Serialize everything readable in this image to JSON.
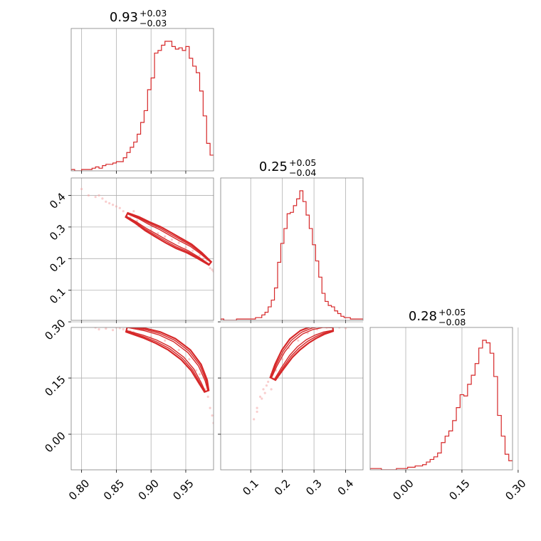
{
  "chart_data": {
    "type": "corner",
    "colors": {
      "series": "#d62728",
      "samples": "#f4a6a6",
      "grid": "#b0b0b0",
      "frame": "#808080"
    },
    "grid": true,
    "parameters": [
      {
        "id": "p0",
        "median_label": "0.93",
        "plus": "+0.03",
        "minus": "−0.03",
        "range": [
          0.785,
          0.99
        ],
        "ticks": [
          0.8,
          0.85,
          0.9,
          0.95
        ],
        "tick_labels": [
          "0.80",
          "0.85",
          "0.90",
          "0.95"
        ]
      },
      {
        "id": "p1",
        "median_label": "0.25",
        "plus": "+0.05",
        "minus": "−0.04",
        "range": [
          0.005,
          0.455
        ],
        "ticks": [
          0.1,
          0.2,
          0.3,
          0.4
        ],
        "tick_labels": [
          "0.1",
          "0.2",
          "0.3",
          "0.4"
        ]
      },
      {
        "id": "p2",
        "median_label": "0.28",
        "plus": "+0.05",
        "minus": "−0.08",
        "range": [
          -0.095,
          0.285
        ],
        "ticks": [
          0.0,
          0.15,
          0.3
        ],
        "tick_labels": [
          "0.00",
          "0.15",
          "0.30"
        ]
      }
    ],
    "histograms": [
      {
        "param": 0,
        "edges": [
          0.785,
          0.79,
          0.795,
          0.8,
          0.805,
          0.81,
          0.815,
          0.82,
          0.825,
          0.83,
          0.835,
          0.84,
          0.845,
          0.85,
          0.855,
          0.86,
          0.865,
          0.87,
          0.875,
          0.88,
          0.885,
          0.89,
          0.895,
          0.9,
          0.905,
          0.91,
          0.915,
          0.92,
          0.925,
          0.93,
          0.935,
          0.94,
          0.945,
          0.95,
          0.955,
          0.96,
          0.965,
          0.97,
          0.975,
          0.98,
          0.985,
          0.99
        ],
        "counts": [
          1,
          0,
          0,
          1,
          1,
          1,
          2,
          3,
          2,
          4,
          5,
          5,
          6,
          7,
          7,
          10,
          14,
          18,
          22,
          28,
          37,
          46,
          62,
          71,
          90,
          92,
          96,
          99,
          99,
          95,
          93,
          94,
          92,
          95,
          86,
          80,
          75,
          61,
          42,
          21,
          12
        ]
      },
      {
        "param": 1,
        "edges": [
          0.005,
          0.015,
          0.025,
          0.035,
          0.045,
          0.055,
          0.065,
          0.075,
          0.085,
          0.095,
          0.105,
          0.115,
          0.125,
          0.135,
          0.145,
          0.155,
          0.165,
          0.175,
          0.185,
          0.195,
          0.205,
          0.215,
          0.225,
          0.235,
          0.245,
          0.255,
          0.265,
          0.275,
          0.285,
          0.295,
          0.305,
          0.315,
          0.325,
          0.335,
          0.345,
          0.355,
          0.365,
          0.375,
          0.385,
          0.395,
          0.405,
          0.415,
          0.425,
          0.435,
          0.445,
          0.455
        ],
        "counts": [
          1,
          0,
          0,
          0,
          0,
          1,
          1,
          1,
          1,
          1,
          1,
          2,
          2,
          4,
          6,
          10,
          15,
          24,
          43,
          57,
          68,
          79,
          80,
          85,
          90,
          96,
          88,
          78,
          68,
          56,
          44,
          32,
          20,
          14,
          11,
          10,
          7,
          5,
          3,
          2,
          2,
          1,
          1,
          1,
          1
        ]
      },
      {
        "param": 2,
        "edges": [
          -0.095,
          -0.085,
          -0.075,
          -0.065,
          -0.055,
          -0.045,
          -0.035,
          -0.025,
          -0.015,
          -0.005,
          0.005,
          0.015,
          0.025,
          0.035,
          0.045,
          0.055,
          0.065,
          0.075,
          0.085,
          0.095,
          0.105,
          0.115,
          0.125,
          0.135,
          0.145,
          0.155,
          0.165,
          0.175,
          0.185,
          0.195,
          0.205,
          0.215,
          0.225,
          0.235,
          0.245,
          0.255,
          0.265,
          0.275,
          0.285
        ],
        "counts": [
          1,
          1,
          1,
          0,
          0,
          0,
          0,
          1,
          1,
          1,
          2,
          2,
          3,
          3,
          4,
          6,
          8,
          10,
          13,
          21,
          26,
          30,
          38,
          48,
          58,
          57,
          66,
          73,
          82,
          94,
          100,
          98,
          90,
          72,
          42,
          26,
          12,
          7
        ]
      }
    ],
    "pairs": [
      {
        "x_param": 0,
        "y_param": 1,
        "ridge": [
          [
            0.865,
            0.338
          ],
          [
            0.88,
            0.322
          ],
          [
            0.895,
            0.302
          ],
          [
            0.91,
            0.285
          ],
          [
            0.925,
            0.266
          ],
          [
            0.94,
            0.248
          ],
          [
            0.955,
            0.232
          ],
          [
            0.97,
            0.21
          ],
          [
            0.985,
            0.185
          ]
        ],
        "halfwidth": [
          0.005,
          0.012,
          0.016,
          0.016,
          0.012,
          0.004
        ],
        "levels_frac": [
          1.0,
          0.7,
          0.4
        ],
        "samples": [
          [
            0.8,
            0.42
          ],
          [
            0.81,
            0.4
          ],
          [
            0.82,
            0.395
          ],
          [
            0.83,
            0.39
          ],
          [
            0.84,
            0.375
          ],
          [
            0.835,
            0.38
          ],
          [
            0.85,
            0.365
          ],
          [
            0.855,
            0.36
          ],
          [
            0.86,
            0.35
          ],
          [
            0.825,
            0.4
          ],
          [
            0.845,
            0.37
          ],
          [
            0.87,
            0.33
          ],
          [
            0.88,
            0.32
          ],
          [
            0.89,
            0.3
          ],
          [
            0.9,
            0.29
          ],
          [
            0.91,
            0.28
          ],
          [
            0.92,
            0.27
          ],
          [
            0.93,
            0.26
          ],
          [
            0.94,
            0.25
          ],
          [
            0.95,
            0.235
          ],
          [
            0.96,
            0.225
          ],
          [
            0.97,
            0.21
          ],
          [
            0.98,
            0.195
          ],
          [
            0.985,
            0.17
          ],
          [
            0.99,
            0.16
          ],
          [
            0.875,
            0.35
          ],
          [
            0.865,
            0.335
          ],
          [
            0.945,
            0.255
          ],
          [
            0.955,
            0.22
          ],
          [
            0.975,
            0.2
          ],
          [
            0.982,
            0.185
          ],
          [
            0.988,
            0.165
          ]
        ]
      },
      {
        "x_param": 0,
        "y_param": 2,
        "ridge": [
          [
            0.865,
            0.281
          ],
          [
            0.89,
            0.27
          ],
          [
            0.91,
            0.258
          ],
          [
            0.93,
            0.24
          ],
          [
            0.95,
            0.212
          ],
          [
            0.965,
            0.178
          ],
          [
            0.975,
            0.14
          ],
          [
            0.98,
            0.115
          ]
        ],
        "halfwidth": [
          0.006,
          0.013,
          0.016,
          0.016,
          0.012,
          0.004
        ],
        "levels_frac": [
          1.0,
          0.7,
          0.4
        ],
        "samples": [
          [
            0.82,
            0.285
          ],
          [
            0.825,
            0.28
          ],
          [
            0.83,
            0.29
          ],
          [
            0.84,
            0.288
          ],
          [
            0.85,
            0.285
          ],
          [
            0.855,
            0.283
          ],
          [
            0.86,
            0.28
          ],
          [
            0.835,
            0.282
          ],
          [
            0.87,
            0.275
          ],
          [
            0.9,
            0.26
          ],
          [
            0.92,
            0.25
          ],
          [
            0.94,
            0.225
          ],
          [
            0.955,
            0.2
          ],
          [
            0.97,
            0.16
          ],
          [
            0.978,
            0.12
          ],
          [
            0.982,
            0.1
          ],
          [
            0.985,
            0.07
          ],
          [
            0.988,
            0.05
          ],
          [
            0.99,
            0.03
          ],
          [
            0.845,
            0.278
          ],
          [
            0.875,
            0.272
          ],
          [
            0.965,
            0.17
          ]
        ]
      },
      {
        "x_param": 1,
        "y_param": 2,
        "ridge": [
          [
            0.17,
            0.148
          ],
          [
            0.19,
            0.18
          ],
          [
            0.215,
            0.215
          ],
          [
            0.24,
            0.24
          ],
          [
            0.27,
            0.26
          ],
          [
            0.3,
            0.272
          ],
          [
            0.33,
            0.279
          ],
          [
            0.36,
            0.281
          ]
        ],
        "halfwidth": [
          0.006,
          0.013,
          0.018,
          0.018,
          0.013,
          0.004
        ],
        "levels_frac": [
          1.0,
          0.7,
          0.4
        ],
        "samples": [
          [
            0.11,
            0.04
          ],
          [
            0.12,
            0.07
          ],
          [
            0.13,
            0.1
          ],
          [
            0.14,
            0.12
          ],
          [
            0.15,
            0.13
          ],
          [
            0.155,
            0.14
          ],
          [
            0.165,
            0.12
          ],
          [
            0.18,
            0.17
          ],
          [
            0.2,
            0.2
          ],
          [
            0.22,
            0.23
          ],
          [
            0.25,
            0.25
          ],
          [
            0.28,
            0.27
          ],
          [
            0.31,
            0.28
          ],
          [
            0.34,
            0.285
          ],
          [
            0.37,
            0.288
          ],
          [
            0.39,
            0.29
          ],
          [
            0.41,
            0.292
          ],
          [
            0.42,
            0.288
          ],
          [
            0.43,
            0.295
          ],
          [
            0.38,
            0.285
          ],
          [
            0.36,
            0.29
          ],
          [
            0.12,
            0.06
          ],
          [
            0.135,
            0.095
          ],
          [
            0.145,
            0.11
          ],
          [
            0.165,
            0.16
          ],
          [
            0.4,
            0.283
          ]
        ]
      }
    ]
  }
}
